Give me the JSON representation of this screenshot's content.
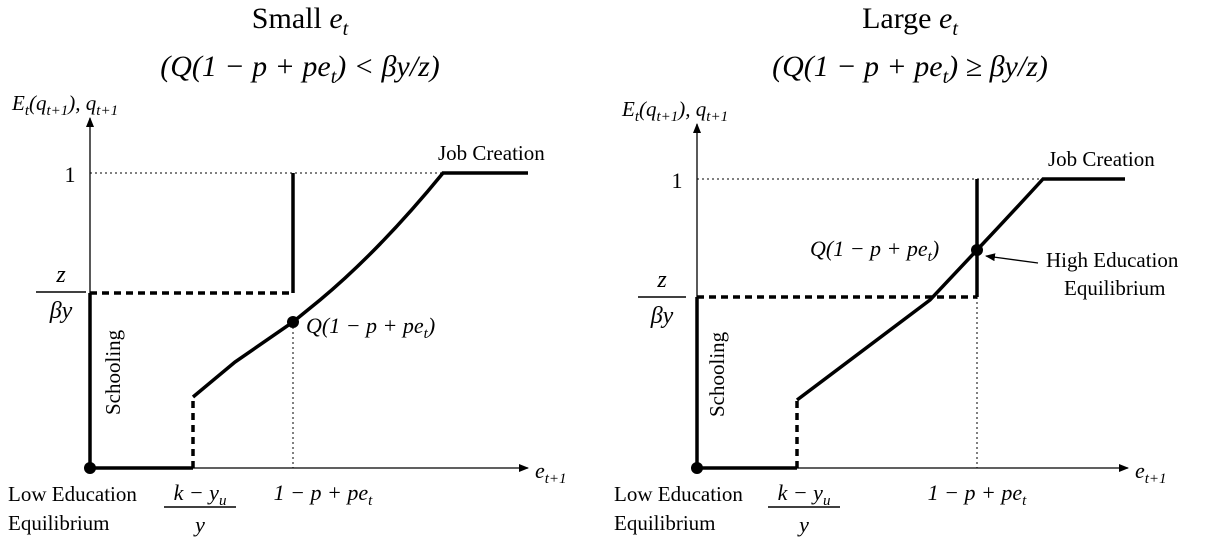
{
  "panels": [
    {
      "title": "Small ",
      "title_var": "e",
      "title_sub": "t",
      "condition": "(Q(1 − p + pe",
      "condition_sub": "t",
      "condition_rest": ") < βy/z)",
      "eq_point_label": "Q(1 − p + pe",
      "eq_point_sub": "t",
      "eq_point_close": ")",
      "annotation": ""
    },
    {
      "title": "Large ",
      "title_var": "e",
      "title_sub": "t",
      "condition": "(Q(1 − p + pe",
      "condition_sub": "t",
      "condition_rest": ") ≥ βy/z)",
      "eq_point_label": "Q(1 − p + pe",
      "eq_point_sub": "t",
      "eq_point_close": ")",
      "annotation_line1": "High Education",
      "annotation_line2": "Equilibrium"
    }
  ],
  "common": {
    "yaxis_E": "E",
    "yaxis_E_sub": "t",
    "yaxis_q_open": "(q",
    "yaxis_q_sub": "t+1",
    "yaxis_close": "), q",
    "yaxis_q2_sub": "t+1",
    "xaxis_e": "e",
    "xaxis_sub": "t+1",
    "tick_one": "1",
    "tick_z": "z",
    "tick_beta_y": "βy",
    "job_creation": "Job Creation",
    "schooling": "Schooling",
    "low_eq_line1": "Low Education",
    "low_eq_line2": "Equilibrium",
    "frac_num": "k − y",
    "frac_num_sub": "u",
    "frac_den": "y",
    "x_tick_label": "1 − p + pe",
    "x_tick_sub": "t"
  }
}
